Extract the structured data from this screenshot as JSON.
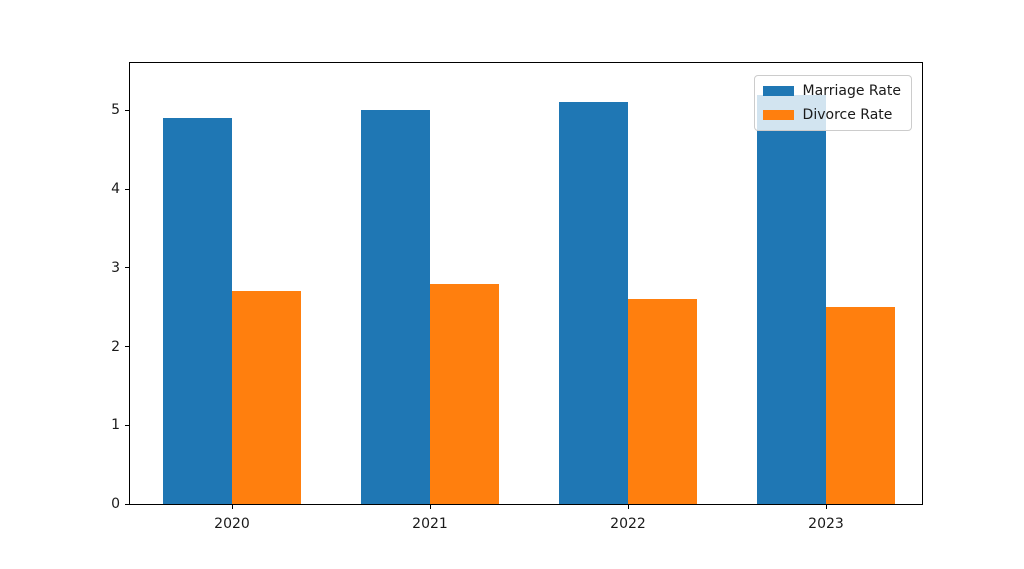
{
  "chart_data": {
    "type": "bar",
    "categories": [
      "2020",
      "2021",
      "2022",
      "2023"
    ],
    "series": [
      {
        "name": "Marriage Rate",
        "color": "#1f77b4",
        "values": [
          4.9,
          5.0,
          5.1,
          5.2
        ]
      },
      {
        "name": "Divorce Rate",
        "color": "#ff7f0e",
        "values": [
          2.7,
          2.8,
          2.6,
          2.5
        ]
      }
    ],
    "title": "",
    "xlabel": "",
    "ylabel": "",
    "ylim": [
      0,
      5.6
    ],
    "yticks": [
      0,
      1,
      2,
      3,
      4,
      5
    ],
    "grid": false,
    "legend_position": "upper right",
    "bar_width_fraction": 0.35
  },
  "colors": {
    "marriage": "#1f77b4",
    "divorce": "#ff7f0e",
    "axes_frame": "#000000",
    "legend_border": "#cccccc",
    "background": "#ffffff"
  }
}
